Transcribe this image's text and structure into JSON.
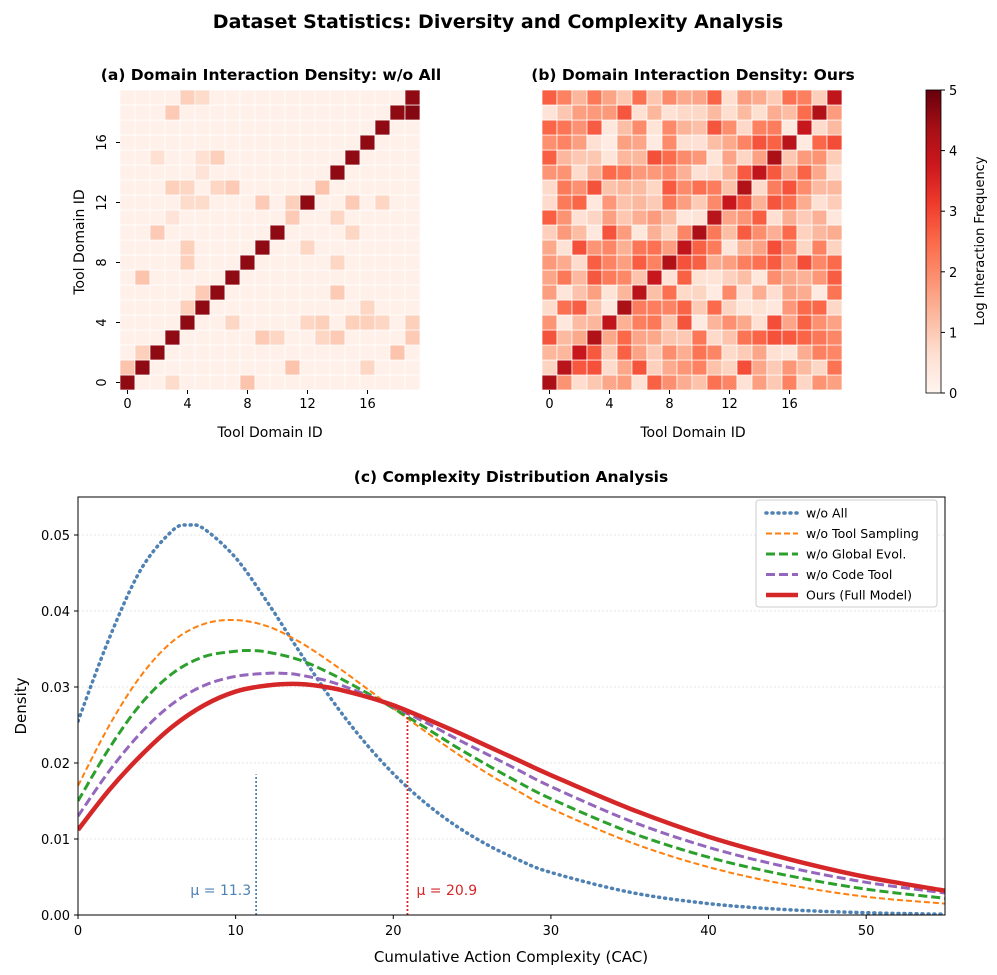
{
  "figure": {
    "title": "Dataset Statistics: Diversity and Complexity Analysis"
  },
  "colors": {
    "text": "#000000",
    "heat_low": "#fff5f0",
    "heat_high": "#67000d",
    "grid": "#e6e6e6"
  },
  "chart_data": [
    {
      "type": "heatmap",
      "title": "(a) Domain Interaction Density: w/o All",
      "xlabel": "Tool Domain ID",
      "ylabel": "Tool Domain ID",
      "size": 20,
      "xticks": [
        0,
        4,
        8,
        12,
        16
      ],
      "yticks": [
        0,
        4,
        8,
        12,
        16
      ],
      "ticklabels": [
        "0",
        "4",
        "8",
        "12",
        "16"
      ],
      "diagonal_value": 4.6,
      "background_value": 0.15,
      "cells": [
        [
          19,
          18,
          4.7
        ],
        [
          4,
          19,
          0.9
        ],
        [
          5,
          19,
          0.7
        ],
        [
          3,
          18,
          1.0
        ],
        [
          2,
          15,
          0.6
        ],
        [
          5,
          15,
          0.6
        ],
        [
          6,
          15,
          0.9
        ],
        [
          5,
          14,
          0.5
        ],
        [
          3,
          13,
          0.9
        ],
        [
          4,
          13,
          0.8
        ],
        [
          6,
          13,
          0.8
        ],
        [
          7,
          13,
          1.0
        ],
        [
          13,
          13,
          1.1
        ],
        [
          4,
          12,
          0.7
        ],
        [
          5,
          12,
          0.7
        ],
        [
          9,
          12,
          1.0
        ],
        [
          11,
          12,
          0.9
        ],
        [
          15,
          12,
          1.0
        ],
        [
          17,
          12,
          0.8
        ],
        [
          3,
          11,
          0.5
        ],
        [
          11,
          11,
          1.0
        ],
        [
          14,
          11,
          0.8
        ],
        [
          2,
          10,
          1.0
        ],
        [
          15,
          10,
          0.8
        ],
        [
          4,
          9,
          0.9
        ],
        [
          12,
          9,
          0.8
        ],
        [
          4,
          8,
          0.9
        ],
        [
          14,
          8,
          0.8
        ],
        [
          1,
          7,
          1.1
        ],
        [
          5,
          6,
          1.0
        ],
        [
          14,
          6,
          1.0
        ],
        [
          4,
          5,
          0.9
        ],
        [
          16,
          5,
          0.8
        ],
        [
          7,
          4,
          0.8
        ],
        [
          12,
          4,
          0.8
        ],
        [
          13,
          4,
          0.9
        ],
        [
          15,
          4,
          0.9
        ],
        [
          16,
          4,
          0.9
        ],
        [
          17,
          4,
          0.8
        ],
        [
          19,
          4,
          0.9
        ],
        [
          9,
          3,
          1.0
        ],
        [
          10,
          3,
          0.8
        ],
        [
          13,
          3,
          0.8
        ],
        [
          14,
          3,
          1.0
        ],
        [
          19,
          3,
          1.0
        ],
        [
          1,
          2,
          0.9
        ],
        [
          18,
          2,
          1.1
        ],
        [
          0,
          1,
          1.1
        ],
        [
          11,
          1,
          1.1
        ],
        [
          16,
          1,
          0.8
        ],
        [
          3,
          0,
          0.7
        ],
        [
          8,
          0,
          1.1
        ],
        [
          2,
          -1,
          1.0
        ]
      ]
    },
    {
      "type": "heatmap",
      "title": "(b) Domain Interaction Density: Ours",
      "xlabel": "Tool Domain ID",
      "size": 20,
      "xticks": [
        0,
        4,
        8,
        12,
        16
      ],
      "ticklabels": [
        "0",
        "4",
        "8",
        "12",
        "16"
      ],
      "diagonal_value": 4.3,
      "seed": 7,
      "value_range": [
        0.3,
        2.9
      ],
      "colorbar": {
        "label": "Log Interaction Frequency",
        "ticks": [
          0,
          1,
          2,
          3,
          4,
          5
        ],
        "ticklabels": [
          "0",
          "1",
          "2",
          "3",
          "4",
          "5"
        ],
        "range": [
          0,
          5
        ]
      }
    },
    {
      "type": "line",
      "title": "(c) Complexity Distribution Analysis",
      "xlabel": "Cumulative Action Complexity (CAC)",
      "ylabel": "Density",
      "xlim": [
        0,
        55
      ],
      "ylim": [
        0,
        0.055
      ],
      "xticks": [
        0,
        10,
        20,
        30,
        40,
        50
      ],
      "xticklabels": [
        "0",
        "10",
        "20",
        "30",
        "40",
        "50"
      ],
      "yticks": [
        0,
        0.01,
        0.02,
        0.03,
        0.04,
        0.05
      ],
      "yticklabels": [
        "0.00",
        "0.01",
        "0.02",
        "0.03",
        "0.04",
        "0.05"
      ],
      "grid": true,
      "legend_position": "top-right",
      "series": [
        {
          "name": "w/o All",
          "color": "#4f81b3",
          "style": "dotted",
          "x": [
            0,
            2,
            4,
            6,
            7,
            8,
            10,
            12,
            14,
            16,
            18,
            20,
            22,
            24,
            26,
            28,
            30,
            35,
            40,
            45,
            50,
            55
          ],
          "y": [
            0.0255,
            0.0365,
            0.0455,
            0.0506,
            0.0513,
            0.0508,
            0.047,
            0.0412,
            0.0348,
            0.0286,
            0.0232,
            0.0186,
            0.0148,
            0.0117,
            0.0092,
            0.0072,
            0.0056,
            0.003,
            0.0015,
            0.0007,
            0.0003,
            0.0001
          ]
        },
        {
          "name": "w/o Tool Sampling",
          "color": "#ff7f0e",
          "style": "dashed",
          "x": [
            0,
            2,
            4,
            6,
            8,
            10,
            12,
            14,
            16,
            18,
            20,
            22,
            24,
            26,
            28,
            30,
            35,
            40,
            45,
            50,
            55
          ],
          "y": [
            0.017,
            0.025,
            0.0315,
            0.036,
            0.0383,
            0.0388,
            0.038,
            0.036,
            0.0333,
            0.0303,
            0.0272,
            0.0242,
            0.0213,
            0.0186,
            0.0162,
            0.014,
            0.0096,
            0.0063,
            0.004,
            0.0024,
            0.0015
          ]
        },
        {
          "name": "w/o Global Evol.",
          "color": "#2ca02c",
          "style": "dashed",
          "x": [
            0,
            2,
            4,
            6,
            8,
            10,
            11,
            12,
            14,
            16,
            18,
            20,
            22,
            24,
            26,
            28,
            30,
            35,
            40,
            45,
            50,
            55
          ],
          "y": [
            0.015,
            0.022,
            0.0278,
            0.0318,
            0.034,
            0.0347,
            0.0348,
            0.0346,
            0.0336,
            0.0318,
            0.0296,
            0.0272,
            0.0247,
            0.0221,
            0.0197,
            0.0174,
            0.0153,
            0.0109,
            0.0076,
            0.0052,
            0.0034,
            0.0022
          ]
        },
        {
          "name": "w/o Code Tool",
          "color": "#9467bd",
          "style": "dashed",
          "x": [
            0,
            2,
            4,
            6,
            8,
            10,
            12,
            13,
            14,
            16,
            18,
            20,
            22,
            24,
            26,
            28,
            30,
            35,
            40,
            45,
            50,
            55
          ],
          "y": [
            0.013,
            0.019,
            0.024,
            0.0278,
            0.0302,
            0.0314,
            0.0318,
            0.0318,
            0.0316,
            0.0307,
            0.0292,
            0.0274,
            0.0254,
            0.0232,
            0.0211,
            0.019,
            0.0169,
            0.0124,
            0.0089,
            0.0063,
            0.0043,
            0.0029
          ]
        },
        {
          "name": "Ours (Full Model)",
          "color": "#d62728",
          "style": "solid",
          "x": [
            0,
            2,
            4,
            6,
            8,
            10,
            12,
            14,
            16,
            18,
            20,
            22,
            24,
            26,
            28,
            30,
            35,
            40,
            45,
            50,
            55
          ],
          "y": [
            0.0112,
            0.0165,
            0.021,
            0.0248,
            0.0276,
            0.0294,
            0.0302,
            0.0304,
            0.0299,
            0.0289,
            0.0276,
            0.0259,
            0.0241,
            0.0222,
            0.0203,
            0.0184,
            0.014,
            0.0103,
            0.0074,
            0.005,
            0.0032
          ]
        }
      ],
      "annotations": [
        {
          "label": "μ = 11.3",
          "x": 11.3,
          "color": "#4f81b3",
          "line_top": 0.0185
        },
        {
          "label": "μ = 20.9",
          "x": 20.9,
          "color": "#d62728",
          "line_top": 0.027
        }
      ]
    }
  ]
}
